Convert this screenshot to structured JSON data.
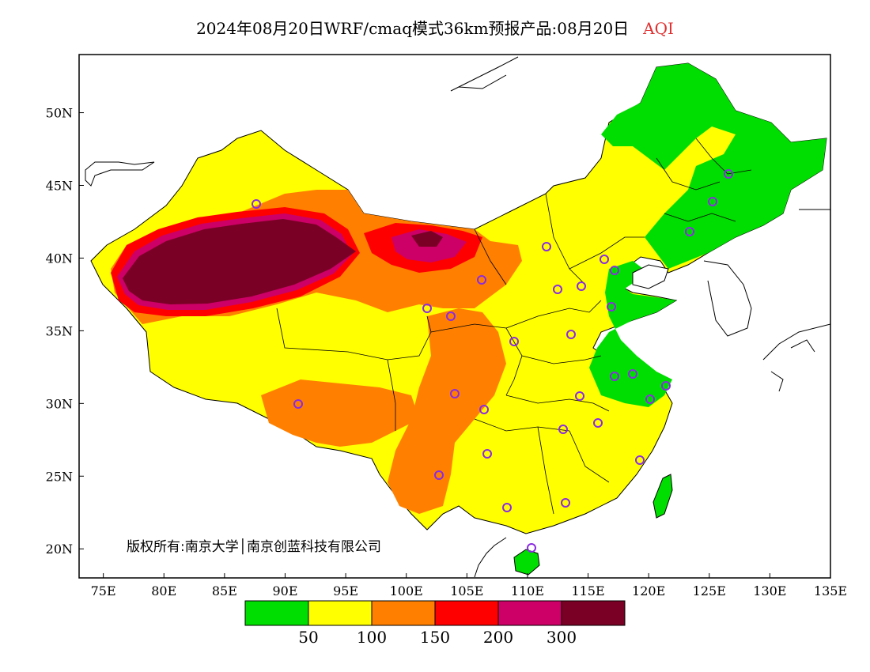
{
  "title": {
    "main": "2024年08月20日WRF/cmaq模式36km预报产品:08月20日",
    "variable": "AQI",
    "variable_color": "#e03030"
  },
  "map": {
    "lon_range": [
      73,
      135
    ],
    "lat_range": [
      18,
      54
    ],
    "x_ticks": [
      "75E",
      "80E",
      "85E",
      "90E",
      "95E",
      "100E",
      "105E",
      "110E",
      "115E",
      "120E",
      "125E",
      "130E",
      "135E"
    ],
    "y_ticks": [
      "50N",
      "45N",
      "40N",
      "35N",
      "30N",
      "25N",
      "20N"
    ],
    "copyright": "版权所有:南京大学│南京创蓝科技有限公司",
    "station_marker_color": "#8a2be2"
  },
  "legend": {
    "colors": [
      "#00dd00",
      "#ffff00",
      "#ff8000",
      "#ff0000",
      "#cc0066",
      "#7a0025"
    ],
    "labels": [
      "50",
      "100",
      "150",
      "200",
      "300"
    ]
  }
}
